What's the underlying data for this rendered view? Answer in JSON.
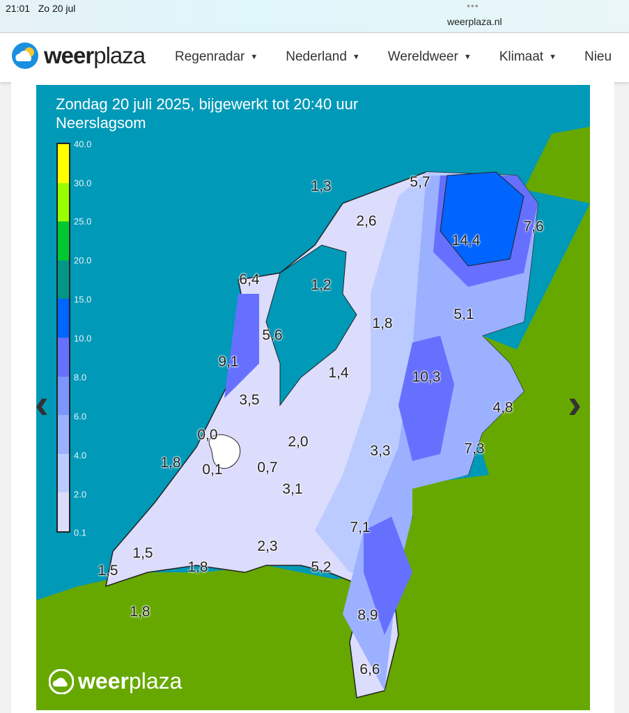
{
  "status_bar": {
    "time": "21:01",
    "date": "Zo 20 jul",
    "url": "weerplaza.nl"
  },
  "nav": {
    "logo_bold": "weer",
    "logo_light": "plaza",
    "items": [
      {
        "label": "Regenradar"
      },
      {
        "label": "Nederland"
      },
      {
        "label": "Wereldweer"
      },
      {
        "label": "Klimaat"
      },
      {
        "label": "Nieu"
      }
    ]
  },
  "map": {
    "title": "Zondag 20 juli 2025, bijgewerkt tot 20:40 uur",
    "subtitle": "Neerslagsom",
    "legend": {
      "ticks": [
        "40.0",
        "30.0",
        "25.0",
        "20.0",
        "15.0",
        "10.0",
        "8.0",
        "6.0",
        "4.0",
        "2.0",
        "0.1"
      ],
      "colors": [
        "#ffff00",
        "#99ff00",
        "#00c832",
        "#009688",
        "#0064ff",
        "#6670ff",
        "#7d96ff",
        "#9bb0ff",
        "#bccbff",
        "#dcdcfc"
      ]
    },
    "values": [
      "1,3",
      "5,7",
      "2,6",
      "7,6",
      "14,4",
      "6,4",
      "1,2",
      "5,1",
      "1,8",
      "5,6",
      "9,1",
      "10,3",
      "1,4",
      "3,5",
      "4,8",
      "0,0",
      "2,0",
      "3,3",
      "7,3",
      "1,8",
      "0,1",
      "0,7",
      "3,1",
      "7,1",
      "1,5",
      "2,3",
      "1,5",
      "1,8",
      "5,2",
      "8,9",
      "1,8",
      "6,6"
    ],
    "watermark_bold": "weer",
    "watermark_light": "plaza",
    "colors": {
      "sea": "#0099b8",
      "land_abroad": "#66a800"
    }
  }
}
